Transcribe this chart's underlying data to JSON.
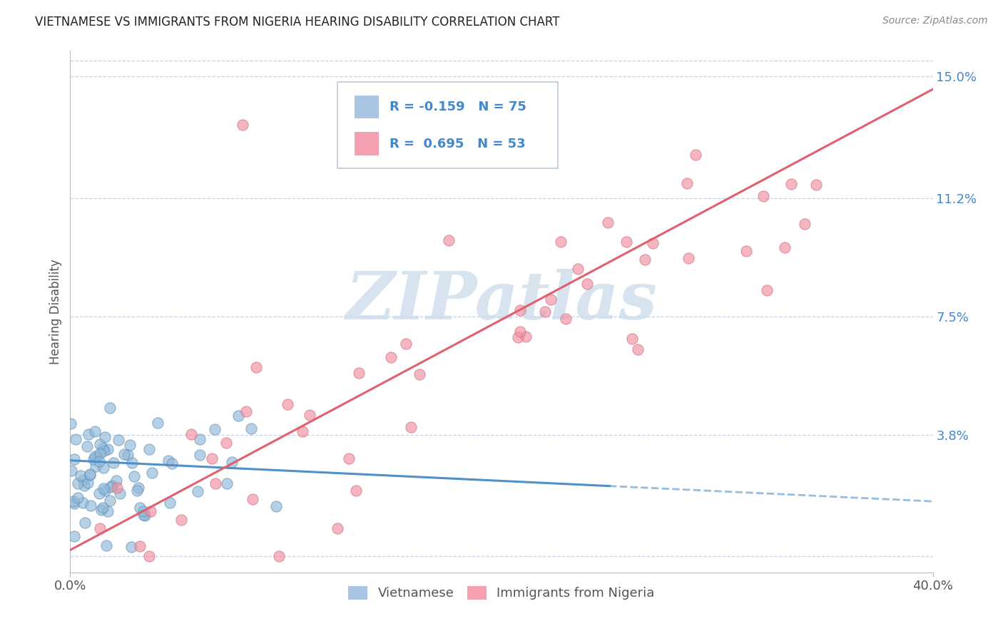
{
  "title": "VIETNAMESE VS IMMIGRANTS FROM NIGERIA HEARING DISABILITY CORRELATION CHART",
  "source_text": "Source: ZipAtlas.com",
  "ylabel": "Hearing Disability",
  "watermark": "ZIPatlas",
  "xmin": 0.0,
  "xmax": 0.4,
  "ymin": -0.005,
  "ymax": 0.158,
  "yticks": [
    0.038,
    0.075,
    0.112,
    0.15
  ],
  "ytick_labels": [
    "3.8%",
    "7.5%",
    "11.2%",
    "15.0%"
  ],
  "xticks": [
    0.0,
    0.4
  ],
  "xtick_labels": [
    "0.0%",
    "40.0%"
  ],
  "legend_label1": "Vietnamese",
  "legend_label2": "Immigrants from Nigeria",
  "R1": -0.159,
  "N1": 75,
  "R2": 0.695,
  "N2": 53,
  "color_blue": "#a8c4e0",
  "color_pink": "#f4a0b0",
  "line_color_blue": "#5090c8",
  "line_color_pink": "#e06070",
  "dot_color_blue": "#90b8d8",
  "dot_color_pink": "#f090a0",
  "background_color": "#ffffff",
  "grid_color": "#c8d4e4",
  "title_color": "#1a1a2e",
  "watermark_color": "#c8d8ea",
  "right_label_color": "#4488cc",
  "legend_box_color": "#dddddd"
}
